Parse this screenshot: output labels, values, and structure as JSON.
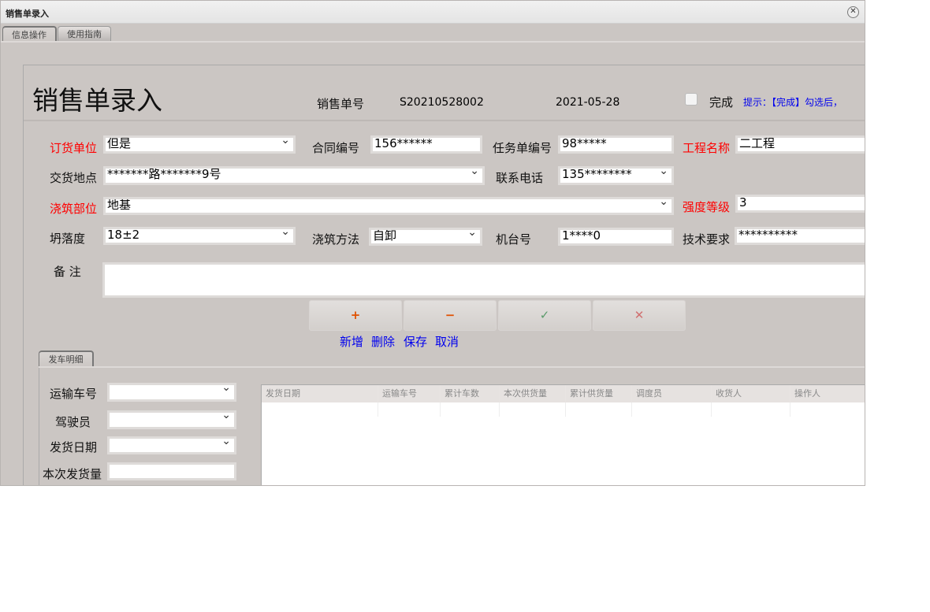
{
  "window": {
    "title": "销售单录入"
  },
  "tabs": [
    "信息操作",
    "使用指南"
  ],
  "header": {
    "title": "销售单录入",
    "order_no_label": "销售单号",
    "order_no": "S20210528002",
    "date": "2021-05-28",
    "done_label": "完成",
    "done_checked": false,
    "hint": "提示：【完成】勾选后，"
  },
  "form": {
    "customer": {
      "label": "订货单位",
      "value": "但是"
    },
    "contract": {
      "label": "合同编号",
      "value": "156******"
    },
    "task": {
      "label": "任务单编号",
      "value": "98*****"
    },
    "project": {
      "label": "工程名称",
      "value": "二工程"
    },
    "address": {
      "label": "交货地点",
      "value": "*******路*******9号"
    },
    "phone": {
      "label": "联系电话",
      "value": "135********"
    },
    "part": {
      "label": "浇筑部位",
      "value": "地基"
    },
    "grade": {
      "label": "强度等级",
      "value": "3"
    },
    "slump": {
      "label": "坍落度",
      "value": "18±2"
    },
    "method": {
      "label": "浇筑方法",
      "value": "自卸"
    },
    "machine": {
      "label": "机台号",
      "value": "1****0"
    },
    "tech": {
      "label": "技术要求",
      "value": "**********"
    },
    "remark": {
      "label": "备 注",
      "value": ""
    }
  },
  "buttons": {
    "add": "新增",
    "delete": "删除",
    "save": "保存",
    "cancel": "取消",
    "colors": {
      "add": "#e05000",
      "delete": "#e05000",
      "save": "#5a9a6a",
      "cancel": "#d07070"
    }
  },
  "subtab": "发车明细",
  "detail": {
    "truck": "运输车号",
    "driver": "驾驶员",
    "date": "发货日期",
    "qty": "本次发货量"
  },
  "grid": {
    "columns": [
      "发货日期",
      "运输车号",
      "累计车数",
      "本次供货量",
      "累计供货量",
      "调度员",
      "收货人",
      "操作人"
    ]
  }
}
